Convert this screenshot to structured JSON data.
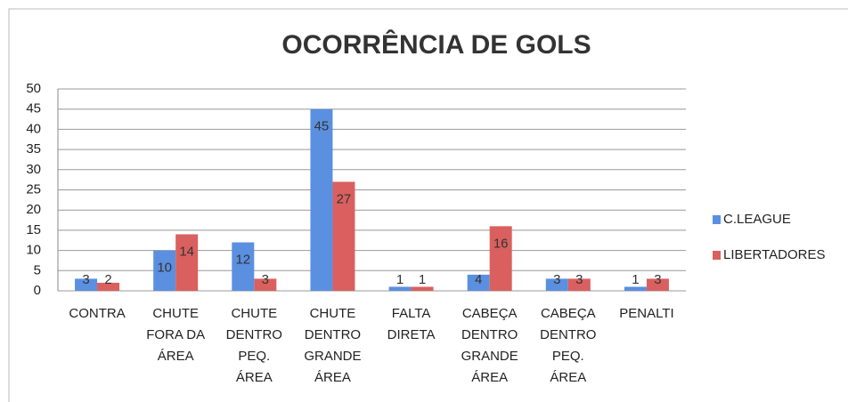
{
  "chart_data": {
    "type": "bar",
    "title": "OCORRÊNCIA DE GOLS",
    "categories": [
      "CONTRA",
      "CHUTE FORA DA ÁREA",
      "CHUTE DENTRO PEQ. ÁREA",
      "CHUTE DENTRO GRANDE ÁREA",
      "FALTA DIRETA",
      "CABEÇA DENTRO GRANDE ÁREA",
      "CABEÇA DENTRO PEQ. ÁREA",
      "PENALTI"
    ],
    "series": [
      {
        "name": "C.LEAGUE",
        "color": "#5b8fe0",
        "values": [
          3,
          10,
          12,
          45,
          1,
          4,
          3,
          1
        ]
      },
      {
        "name": "LIBERTADORES",
        "color": "#d9605f",
        "values": [
          2,
          14,
          3,
          27,
          1,
          16,
          3,
          3
        ]
      }
    ],
    "ylim": [
      0,
      50
    ],
    "yticks": [
      0,
      5,
      10,
      15,
      20,
      25,
      30,
      35,
      40,
      45,
      50
    ],
    "grid": true,
    "legend": "right"
  }
}
